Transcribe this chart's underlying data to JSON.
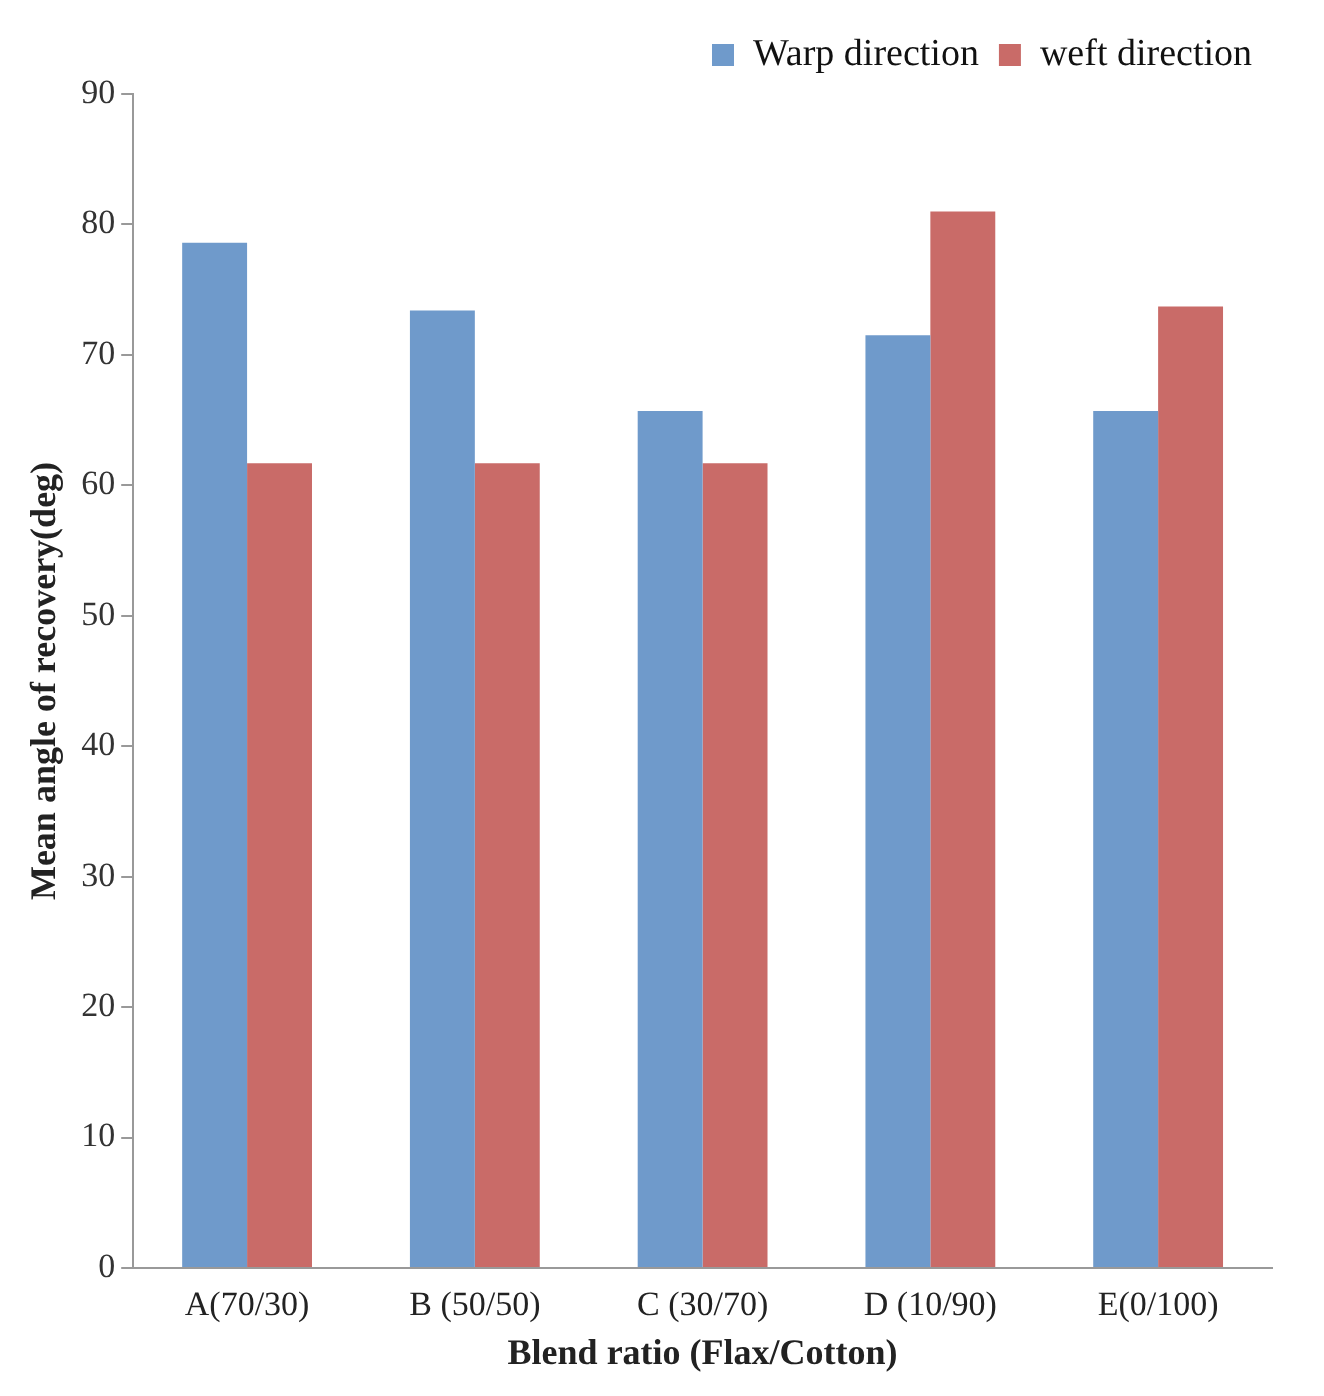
{
  "chart_data": {
    "type": "bar",
    "xlabel": "Blend ratio (Flax/Cotton)",
    "ylabel": "Mean angle of recovery(deg)",
    "categories": [
      "A(70/30)",
      "B (50/50)",
      "C (30/70)",
      "D (10/90)",
      "E(0/100)"
    ],
    "series": [
      {
        "name": "Warp direction",
        "color": "#6f9acb",
        "values": [
          78.6,
          73.4,
          65.7,
          71.5,
          65.7
        ]
      },
      {
        "name": "weft direction",
        "color": "#c96b68",
        "values": [
          61.7,
          61.7,
          61.7,
          81.0,
          73.7
        ]
      }
    ],
    "ylim": [
      0,
      90
    ],
    "yticks": [
      0,
      10,
      20,
      30,
      40,
      50,
      60,
      70,
      80,
      90
    ],
    "grid": false,
    "legend": "top right"
  }
}
